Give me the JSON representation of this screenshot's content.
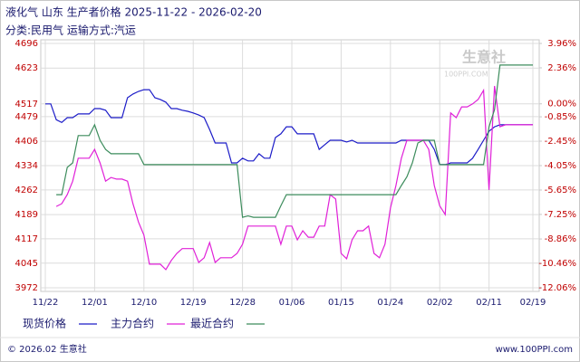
{
  "chart_data": {
    "type": "line",
    "title": "液化气 山东 生产者价格 2025-11-22 - 2026-02-20",
    "subtitle": "分类:民用气 运输方式:汽运",
    "watermark": "生意社",
    "watermark_sub": "100PPI.COM",
    "footer_left": "© 2026.02 生意社",
    "footer_right": "www.100PPI.com",
    "categories": [
      "11/22",
      null,
      null,
      null,
      null,
      null,
      null,
      null,
      null,
      "12/01",
      null,
      null,
      null,
      null,
      null,
      null,
      null,
      null,
      "12/10",
      null,
      null,
      null,
      null,
      null,
      null,
      null,
      null,
      "12/19",
      null,
      null,
      null,
      null,
      null,
      null,
      null,
      null,
      "12/28",
      null,
      null,
      null,
      null,
      null,
      null,
      null,
      null,
      "01/06",
      null,
      null,
      null,
      null,
      null,
      null,
      null,
      null,
      "01/15",
      null,
      null,
      null,
      null,
      null,
      null,
      null,
      null,
      "01/24",
      null,
      null,
      null,
      null,
      null,
      null,
      null,
      null,
      "02/02",
      null,
      null,
      null,
      null,
      null,
      null,
      null,
      null,
      "02/11",
      null,
      null,
      null,
      null,
      null,
      null,
      null,
      "02/19"
    ],
    "series": [
      {
        "name": "现货价格",
        "color": "#1c1cc8",
        "values": [
          4517,
          4517,
          4470,
          4462,
          4476,
          4476,
          4487,
          4487,
          4487,
          4503,
          4503,
          4498,
          4476,
          4476,
          4476,
          4535,
          4546,
          4554,
          4559,
          4559,
          4535,
          4530,
          4522,
          4503,
          4503,
          4498,
          4495,
          4490,
          4484,
          4476,
          4441,
          4401,
          4401,
          4401,
          4342,
          4342,
          4356,
          4348,
          4348,
          4369,
          4356,
          4356,
          4417,
          4428,
          4449,
          4449,
          4428,
          4428,
          4428,
          4428,
          4382,
          4396,
          4409,
          4409,
          4409,
          4404,
          4409,
          4401,
          4401,
          4401,
          4401,
          4401,
          4401,
          4401,
          4401,
          4409,
          4409,
          4409,
          4409,
          4409,
          4409,
          4382,
          4337,
          4337,
          4342,
          4342,
          4342,
          4342,
          4356,
          4382,
          4409,
          4436,
          4449,
          4455,
          4455,
          4455,
          4455,
          4455,
          4455,
          4455
        ]
      },
      {
        "name": "主力合约",
        "color": "#e020d8",
        "values": [
          null,
          null,
          4213,
          4221,
          4248,
          4288,
          4356,
          4356,
          4356,
          4382,
          4342,
          4288,
          4299,
          4294,
          4294,
          4288,
          4221,
          4167,
          4128,
          4042,
          4042,
          4042,
          4026,
          4053,
          4074,
          4088,
          4088,
          4088,
          4047,
          4061,
          4106,
          4047,
          4061,
          4061,
          4061,
          4074,
          4101,
          4155,
          4155,
          4155,
          4155,
          4155,
          4155,
          4101,
          4155,
          4155,
          4114,
          4141,
          4122,
          4122,
          4155,
          4155,
          4248,
          4235,
          4074,
          4058,
          4114,
          4141,
          4141,
          4155,
          4074,
          4061,
          4101,
          4208,
          4275,
          4356,
          4409,
          4409,
          4409,
          4409,
          4382,
          4275,
          4215,
          4189,
          4490,
          4476,
          4508,
          4508,
          4517,
          4530,
          4557,
          4262,
          4570,
          4449,
          4455,
          4455,
          4455,
          4455,
          4455,
          4455
        ]
      },
      {
        "name": "最近合约",
        "color": "#3c8c5c",
        "values": [
          null,
          null,
          4248,
          4248,
          4329,
          4342,
          4423,
          4423,
          4423,
          4455,
          4409,
          4382,
          4369,
          4369,
          4369,
          4369,
          4369,
          4369,
          4337,
          4337,
          4337,
          4337,
          4337,
          4337,
          4337,
          4337,
          4337,
          4337,
          4337,
          4337,
          4337,
          4337,
          4337,
          4337,
          4337,
          4337,
          4181,
          4185,
          4181,
          4181,
          4181,
          4181,
          4181,
          4215,
          4248,
          4248,
          4248,
          4248,
          4248,
          4248,
          4248,
          4248,
          4248,
          4248,
          4248,
          4248,
          4248,
          4248,
          4248,
          4248,
          4248,
          4248,
          4248,
          4248,
          4248,
          4275,
          4301,
          4342,
          4401,
          4409,
          4409,
          4409,
          4337,
          4337,
          4337,
          4337,
          4337,
          4337,
          4337,
          4337,
          4337,
          4449,
          4500,
          4632,
          4632,
          4632,
          4632,
          4632,
          4632,
          4632
        ]
      }
    ],
    "ylim": [
      3972,
      4696
    ],
    "yticks": [
      4696,
      4623,
      4517,
      4479,
      4406,
      4334,
      4262,
      4189,
      4117,
      4045,
      3972
    ],
    "y2lim": [
      -12.06,
      3.96
    ],
    "y2ticks": [
      {
        "value": 3.96,
        "label": "3.96%"
      },
      {
        "value": 2.36,
        "label": "2.36%"
      },
      {
        "value": 0,
        "label": "0.00%"
      },
      {
        "value": -0.85,
        "label": "-0.85%"
      },
      {
        "value": -2.45,
        "label": "-2.45%"
      },
      {
        "value": -4.05,
        "label": "-4.05%"
      },
      {
        "value": -5.65,
        "label": "-5.65%"
      },
      {
        "value": -7.25,
        "label": "-7.25%"
      },
      {
        "value": -8.86,
        "label": "-8.86%"
      },
      {
        "value": -10.46,
        "label": "-10.46%"
      },
      {
        "value": -12.06,
        "label": "-12.06%"
      }
    ],
    "grid": true
  }
}
